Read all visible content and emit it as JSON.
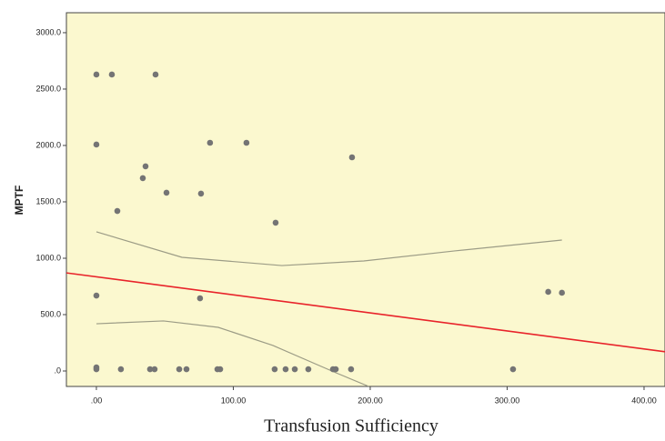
{
  "chart_data": {
    "type": "scatter",
    "xlabel": "Transfusion Sufficiency",
    "ylabel": "MPTF",
    "xlim": [
      -21.9,
      415.3
    ],
    "ylim": [
      -137,
      3177
    ],
    "xticks": [
      {
        "value": 0,
        "label": ".00"
      },
      {
        "value": 100,
        "label": "100.00"
      },
      {
        "value": 200,
        "label": "200.00"
      },
      {
        "value": 300,
        "label": "300.00"
      },
      {
        "value": 400,
        "label": "400.00"
      }
    ],
    "yticks": [
      {
        "value": 0,
        "label": ".0"
      },
      {
        "value": 500,
        "label": "500.0"
      },
      {
        "value": 1000,
        "label": "1000.0"
      },
      {
        "value": 1500,
        "label": "1500.0"
      },
      {
        "value": 2000,
        "label": "2000.0"
      },
      {
        "value": 2500,
        "label": "2500.0"
      },
      {
        "value": 3000,
        "label": "3000.0"
      }
    ],
    "background": "#fbf8cf",
    "series": [
      {
        "color": "#747474",
        "x": [
          0,
          11.3,
          43.2,
          0,
          35.9,
          33.9,
          83,
          109.6,
          186.7,
          51.2,
          76.4,
          15.3,
          130.9,
          0,
          75.7,
          330,
          340,
          0,
          0,
          17.9,
          39.2,
          42.5,
          60.5,
          65.8,
          88.4,
          90.4,
          130.2,
          138.2,
          144.9,
          154.8,
          172.8,
          174.8,
          186,
          304.3
        ],
        "values": [
          2629,
          2629,
          2629,
          2008,
          1815,
          1710,
          2024,
          2024,
          1895,
          1581,
          1573,
          1419,
          1315,
          669,
          645,
          702,
          694,
          32,
          16,
          16,
          16,
          16,
          16,
          16,
          16,
          16,
          16,
          16,
          16,
          16,
          16,
          16,
          16,
          16
        ]
      }
    ],
    "fit": {
      "color": "#e8232a",
      "x": [
        -21.9,
        415.3
      ],
      "values": [
        870,
        171
      ]
    },
    "bands": [
      {
        "color": "#9c9c86",
        "x": [
          0,
          62.5,
          135.5,
          195.3,
          261.7,
          340
        ],
        "values": [
          1234,
          1008,
          935,
          976,
          1065,
          1161
        ]
      },
      {
        "color": "#9c9c86",
        "x": [
          0,
          49,
          89,
          129,
          175,
          199
        ],
        "values": [
          419,
          444,
          387,
          226,
          -16,
          -137
        ]
      }
    ]
  }
}
